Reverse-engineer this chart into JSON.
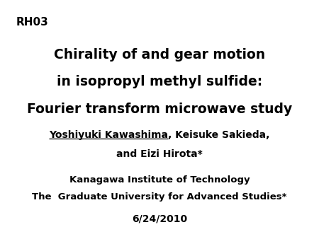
{
  "background_color": "#ffffff",
  "tag": "RH03",
  "tag_fontsize": 11,
  "tag_fontweight": "bold",
  "title_lines": [
    "Chirality of and gear motion",
    "in isopropyl methyl sulfide:",
    "Fourier transform microwave study"
  ],
  "title_fontsize": 13.5,
  "title_fontweight": "bold",
  "authors_line1": "Yoshiyuki Kawashima, Keisuke Sakieda,",
  "authors_line2": "and Eizi Hirota*",
  "authors_fontsize": 10,
  "authors_fontweight": "bold",
  "underline_name": "Yoshiyuki Kawashima",
  "affil_line1": "Kanagawa Institute of Technology",
  "affil_line2": "The  Graduate University for Advanced Studies*",
  "affil_fontsize": 9.5,
  "affil_fontweight": "bold",
  "date": "6/24/2010",
  "date_fontsize": 10,
  "date_fontweight": "bold"
}
